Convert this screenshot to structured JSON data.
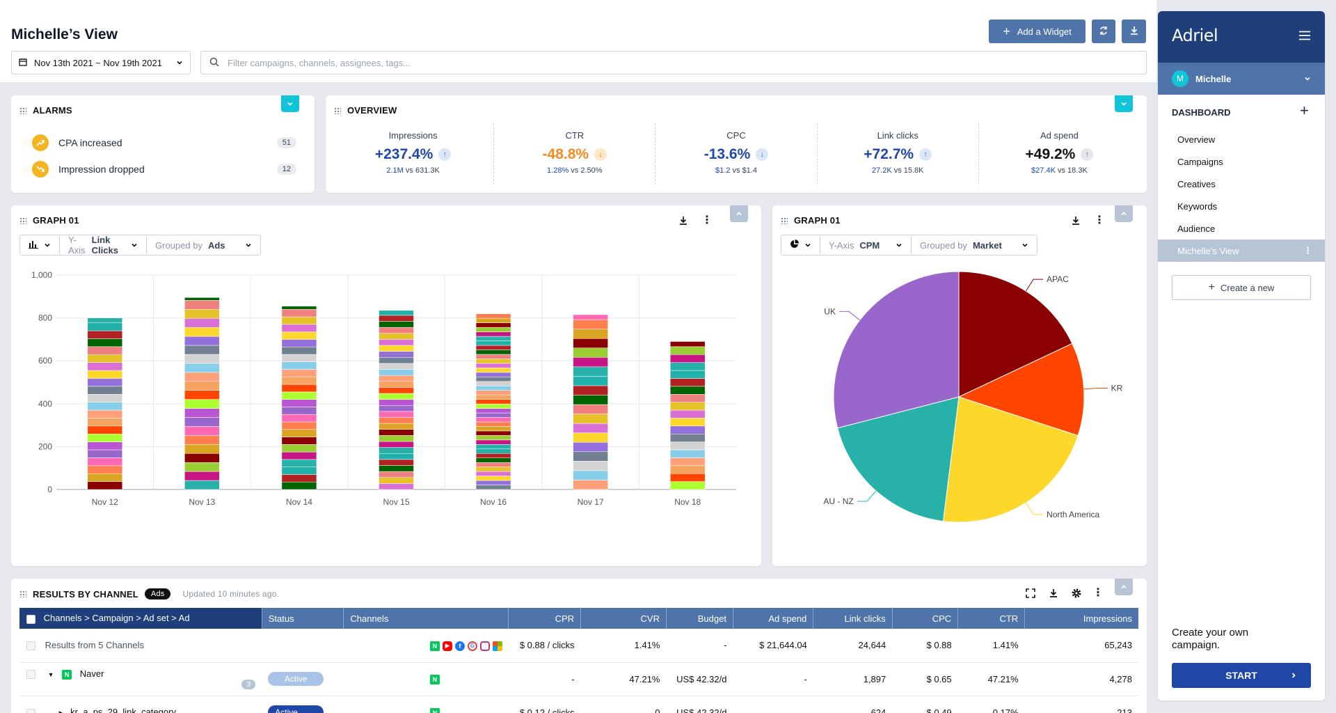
{
  "header": {
    "title": "Michelle’s View",
    "date_range": "Nov 13th 2021 ~ Nov 19th 2021",
    "search_placeholder": "Filter campaigns, channels, assignees, tags...",
    "add_widget": "Add a Widget"
  },
  "alarms": {
    "title": "ALARMS",
    "items": [
      {
        "label": "CPA increased",
        "count": "51"
      },
      {
        "label": "Impression dropped",
        "count": "12"
      }
    ]
  },
  "overview": {
    "title": "OVERVIEW",
    "metrics": [
      {
        "label": "Impressions",
        "value": "+237.4%",
        "cur": "2.1M",
        "vs": " vs 631.3K",
        "color": "#1e47a8",
        "arrow": "↑",
        "arrow_bg": "#dbe6f7",
        "arrow_color": "#4e74a9"
      },
      {
        "label": "CTR",
        "value": "-48.8%",
        "cur": "1.28%",
        "vs": " vs 2.50%",
        "color": "#f58a1f",
        "arrow": "↓",
        "arrow_bg": "#fde7c8",
        "arrow_color": "#e08a00"
      },
      {
        "label": "CPC",
        "value": "-13.6%",
        "cur": "$1.2",
        "vs": " vs $1.4",
        "color": "#1e47a8",
        "arrow": "↓",
        "arrow_bg": "#dbe6f7",
        "arrow_color": "#4e74a9"
      },
      {
        "label": "Link clicks",
        "value": "+72.7%",
        "cur": "27.2K",
        "vs": " vs 15.8K",
        "color": "#1e47a8",
        "arrow": "↑",
        "arrow_bg": "#dbe6f7",
        "arrow_color": "#4e74a9"
      },
      {
        "label": "Ad spend",
        "value": "+49.2%",
        "cur": "$27.4K",
        "vs": " vs 18.3K",
        "color": "#111111",
        "arrow": "↑",
        "arrow_bg": "#e5e7eb",
        "arrow_color": "#6b7280"
      }
    ]
  },
  "graph1": {
    "title": "GRAPH 01",
    "yaxis_label": "Y-Axis",
    "yaxis_value": "Link Clicks",
    "group_label": "Grouped by",
    "group_value": "Ads"
  },
  "graph2": {
    "title": "GRAPH 01",
    "yaxis_label": "Y-Axis",
    "yaxis_value": "CPM",
    "group_label": "Grouped by",
    "group_value": "Market"
  },
  "chart_data": [
    {
      "type": "bar",
      "stacked": true,
      "categories": [
        "Nov 12",
        "Nov 13",
        "Nov 14",
        "Nov 15",
        "Nov 16",
        "Nov 17",
        "Nov 18"
      ],
      "totals": [
        800,
        895,
        855,
        835,
        820,
        815,
        690
      ],
      "ylim": [
        0,
        1000
      ],
      "yticks": [
        "0",
        "200",
        "400",
        "600",
        "800",
        "1,000"
      ],
      "grid": true
    },
    {
      "type": "pie",
      "labels": [
        "APAC",
        "KR",
        "North America",
        "AU - NZ",
        "UK"
      ],
      "values": [
        18,
        12,
        22,
        19,
        29
      ],
      "colors": [
        "#8b0000",
        "#ff4500",
        "#fdd72a",
        "#27b1a8",
        "#9966cc"
      ]
    }
  ],
  "results": {
    "title": "RESULTS BY CHANNEL",
    "badge": "Ads",
    "updated": "Updated 10 minutes ago.",
    "columns": [
      "Channels > Campaign > Ad set > Ad",
      "Status",
      "Channels",
      "CPR",
      "CVR",
      "Budget",
      "Ad spend",
      "Link clicks",
      "CPC",
      "CTR",
      "Impressions"
    ],
    "rows": [
      {
        "name": "Results from 5 Channels",
        "status": "",
        "cpr": "$ 0.88 / clicks",
        "cvr": "1.41%",
        "budget": "-",
        "spend": "$ 21,644.04",
        "clicks": "24,644",
        "cpc": "$ 0.88",
        "ctr": "1.41%",
        "imp": "65,243"
      },
      {
        "name": "Naver",
        "count": "3",
        "status": "Active",
        "cpr": "-",
        "cvr": "47.21%",
        "budget": "US$ 42.32/d",
        "spend": "-",
        "clicks": "1,897",
        "cpc": "$ 0.65",
        "ctr": "47.21%",
        "imp": "4,278"
      },
      {
        "name": "kr_a_ps_29_link_category",
        "status": "Active",
        "cpr": "$ 0.12 / clicks",
        "cvr": "0",
        "budget": "US$ 42.32/d",
        "spend": "-",
        "clicks": "624",
        "cpc": "$ 0.49",
        "ctr": "0.17%",
        "imp": "213"
      }
    ]
  },
  "sidebar": {
    "brand": "Adriel",
    "user": "Michelle",
    "user_initial": "M",
    "section": "DASHBOARD",
    "items": [
      "Overview",
      "Campaigns",
      "Creatives",
      "Keywords",
      "Audience",
      "Michelle’s View"
    ],
    "create": "Create a new",
    "cta_text": "Create your own campaign.",
    "start": "START"
  }
}
